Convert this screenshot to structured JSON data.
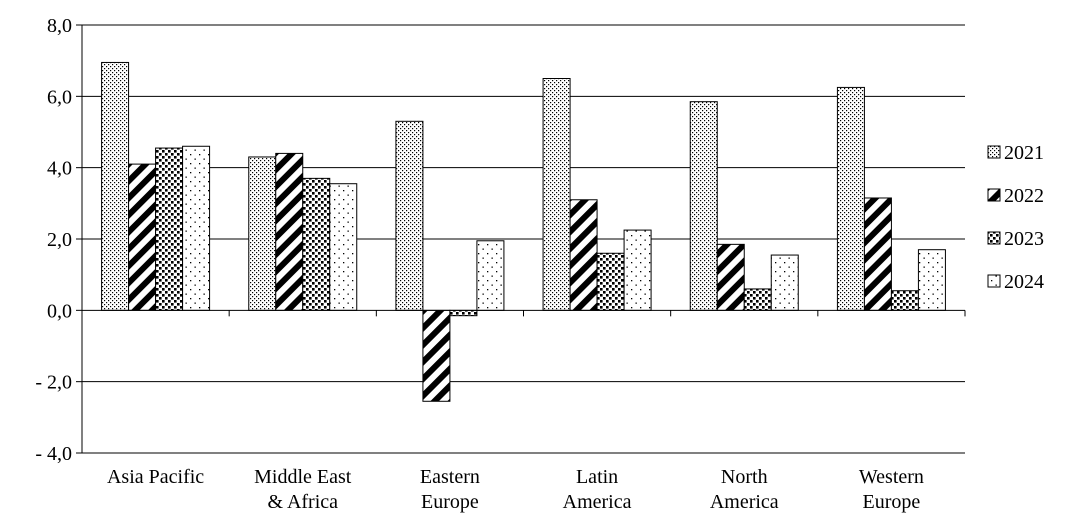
{
  "chart_data": {
    "type": "bar",
    "title": "",
    "xlabel": "",
    "ylabel": "",
    "ylim": [
      -4.0,
      8.0
    ],
    "yticks": [
      {
        "value": 8.0,
        "label": "8,0"
      },
      {
        "value": 6.0,
        "label": "6,0"
      },
      {
        "value": 4.0,
        "label": "4,0"
      },
      {
        "value": 2.0,
        "label": "2,0"
      },
      {
        "value": 0.0,
        "label": "0,0"
      },
      {
        "value": -2.0,
        "label": "- 2,0"
      },
      {
        "value": -4.0,
        "label": "- 4,0"
      }
    ],
    "grid": true,
    "legend_position": "right",
    "categories": [
      [
        "Asia Pacific"
      ],
      [
        "Middle East",
        "& Africa"
      ],
      [
        "Eastern",
        "Europe"
      ],
      [
        "Latin",
        "America"
      ],
      [
        "North",
        "America"
      ],
      [
        "Western",
        "Europe"
      ]
    ],
    "series": [
      {
        "name": "2021",
        "pattern": "dots-fine",
        "values": [
          6.95,
          4.3,
          5.3,
          6.5,
          5.85,
          6.25
        ]
      },
      {
        "name": "2022",
        "pattern": "diagonal-stripes",
        "values": [
          4.1,
          4.4,
          -2.55,
          3.1,
          1.85,
          3.15
        ]
      },
      {
        "name": "2023",
        "pattern": "dots-dense",
        "values": [
          4.55,
          3.7,
          -0.15,
          1.6,
          0.6,
          0.55
        ]
      },
      {
        "name": "2024",
        "pattern": "dots-sparse",
        "values": [
          4.6,
          3.55,
          1.95,
          2.25,
          1.55,
          1.7
        ]
      }
    ]
  }
}
